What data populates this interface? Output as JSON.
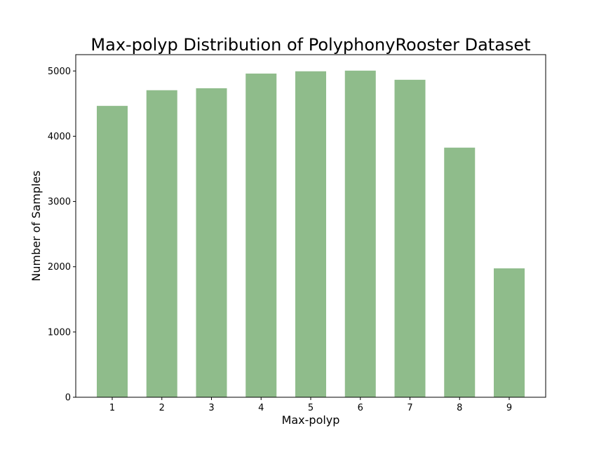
{
  "chart_data": {
    "type": "bar",
    "title": "Max-polyp Distribution of PolyphonyRooster Dataset",
    "xlabel": "Max-polyp",
    "ylabel": "Number of Samples",
    "categories": [
      "1",
      "2",
      "3",
      "4",
      "5",
      "6",
      "7",
      "8",
      "9"
    ],
    "values": [
      4465,
      4705,
      4735,
      4960,
      4995,
      5005,
      4865,
      3825,
      1975
    ],
    "ylim": [
      0,
      5250
    ],
    "yticks": [
      "0",
      "1000",
      "2000",
      "3000",
      "4000",
      "5000"
    ],
    "grid": false,
    "legend": "none",
    "bar_color": "#8fbc8b"
  }
}
